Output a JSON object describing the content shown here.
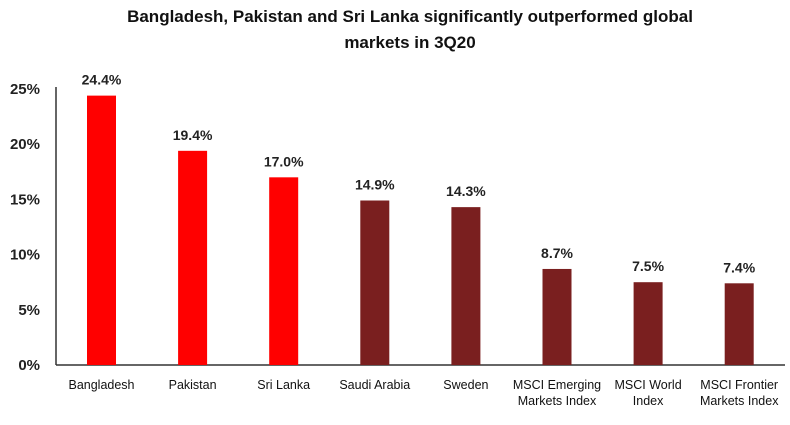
{
  "chart_data": {
    "type": "bar",
    "title": "Bangladesh, Pakistan and Sri Lanka significantly outperformed global markets in 3Q20",
    "title_lines": [
      "Bangladesh, Pakistan and Sri Lanka significantly outperformed global",
      "markets in 3Q20"
    ],
    "categories": [
      [
        "Bangladesh"
      ],
      [
        "Pakistan"
      ],
      [
        "Sri Lanka"
      ],
      [
        "Saudi Arabia"
      ],
      [
        "Sweden"
      ],
      [
        "MSCI Emerging",
        "Markets Index"
      ],
      [
        "MSCI World",
        "Index"
      ],
      [
        "MSCI Frontier",
        "Markets Index"
      ]
    ],
    "values": [
      24.4,
      19.4,
      17.0,
      14.9,
      14.3,
      8.7,
      7.5,
      7.4
    ],
    "data_labels": [
      "24.4%",
      "19.4%",
      "17.0%",
      "14.9%",
      "14.3%",
      "8.7%",
      "7.5%",
      "7.4%"
    ],
    "highlight": [
      true,
      true,
      true,
      false,
      false,
      false,
      false,
      false
    ],
    "colors": {
      "highlight": "#ff0000",
      "other": "#7a1f1f"
    },
    "yticks": [
      0,
      5,
      10,
      15,
      20,
      25
    ],
    "ytick_labels": [
      "0%",
      "5%",
      "10%",
      "15%",
      "20%",
      "25%"
    ],
    "ylim": [
      0,
      25
    ],
    "xlabel": "",
    "ylabel": "",
    "grid": false,
    "legend": "none"
  }
}
